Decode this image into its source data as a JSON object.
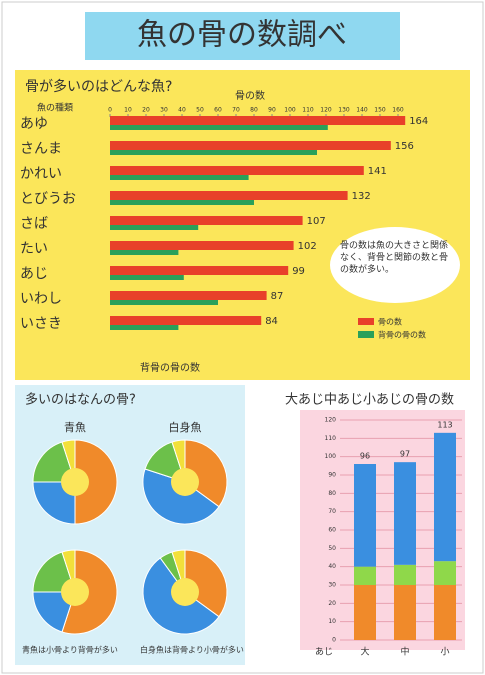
{
  "title": "魚の骨の数調べ",
  "bar_chart": {
    "type": "bar",
    "title": "骨が多いのはどんな魚?",
    "category_header": "魚の種類",
    "axis_title": "骨の数",
    "bottom_label": "背骨の骨の数",
    "categories": [
      "あゆ",
      "さんま",
      "かれい",
      "とびうお",
      "さば",
      "たい",
      "あじ",
      "いわし",
      "いさき"
    ],
    "series": [
      {
        "name": "骨の数",
        "color": "#e8402a",
        "values": [
          164,
          156,
          141,
          132,
          107,
          102,
          99,
          87,
          84
        ]
      },
      {
        "name": "背骨の骨の数",
        "color": "#2aa05a",
        "values": [
          121,
          115,
          77,
          80,
          49,
          38,
          41,
          60,
          38
        ]
      }
    ],
    "xlim": [
      0,
      170
    ],
    "xticks": [
      0,
      10,
      20,
      30,
      40,
      50,
      60,
      70,
      80,
      90,
      100,
      110,
      120,
      130,
      140,
      150,
      160
    ],
    "note": "骨の数は魚の大きさと関係なく、背骨と関節の数と骨の数が多い。"
  },
  "pie_charts": {
    "type": "pie",
    "title": "多いのはなんの骨?",
    "colors": [
      "#f08a2a",
      "#3a8fe0",
      "#6cc04a",
      "#f2e03a"
    ],
    "groups": [
      {
        "name": "青魚",
        "pies": [
          [
            50,
            25,
            20,
            5
          ],
          [
            55,
            20,
            20,
            5
          ]
        ]
      },
      {
        "name": "白身魚",
        "pies": [
          [
            35,
            45,
            15,
            5
          ],
          [
            35,
            55,
            5,
            5
          ]
        ]
      }
    ],
    "notes": [
      "青魚は小骨より背骨が多い",
      "白身魚は背骨より小骨が多い"
    ]
  },
  "stacked_chart": {
    "type": "bar",
    "title": "大あじ中あじ小あじの骨の数",
    "x_label": "あじ",
    "categories": [
      "大",
      "中",
      "小"
    ],
    "series": [
      {
        "color": "#f08a2a",
        "values": [
          30,
          30,
          30
        ]
      },
      {
        "color": "#8fd84a",
        "values": [
          10,
          11,
          13
        ]
      },
      {
        "color": "#3a8fe0",
        "values": [
          56,
          56,
          70
        ]
      }
    ],
    "totals": [
      96,
      97,
      113
    ],
    "ylim": [
      0,
      120
    ],
    "yticks": [
      0,
      10,
      20,
      30,
      40,
      50,
      60,
      70,
      80,
      90,
      100,
      110,
      120
    ]
  }
}
